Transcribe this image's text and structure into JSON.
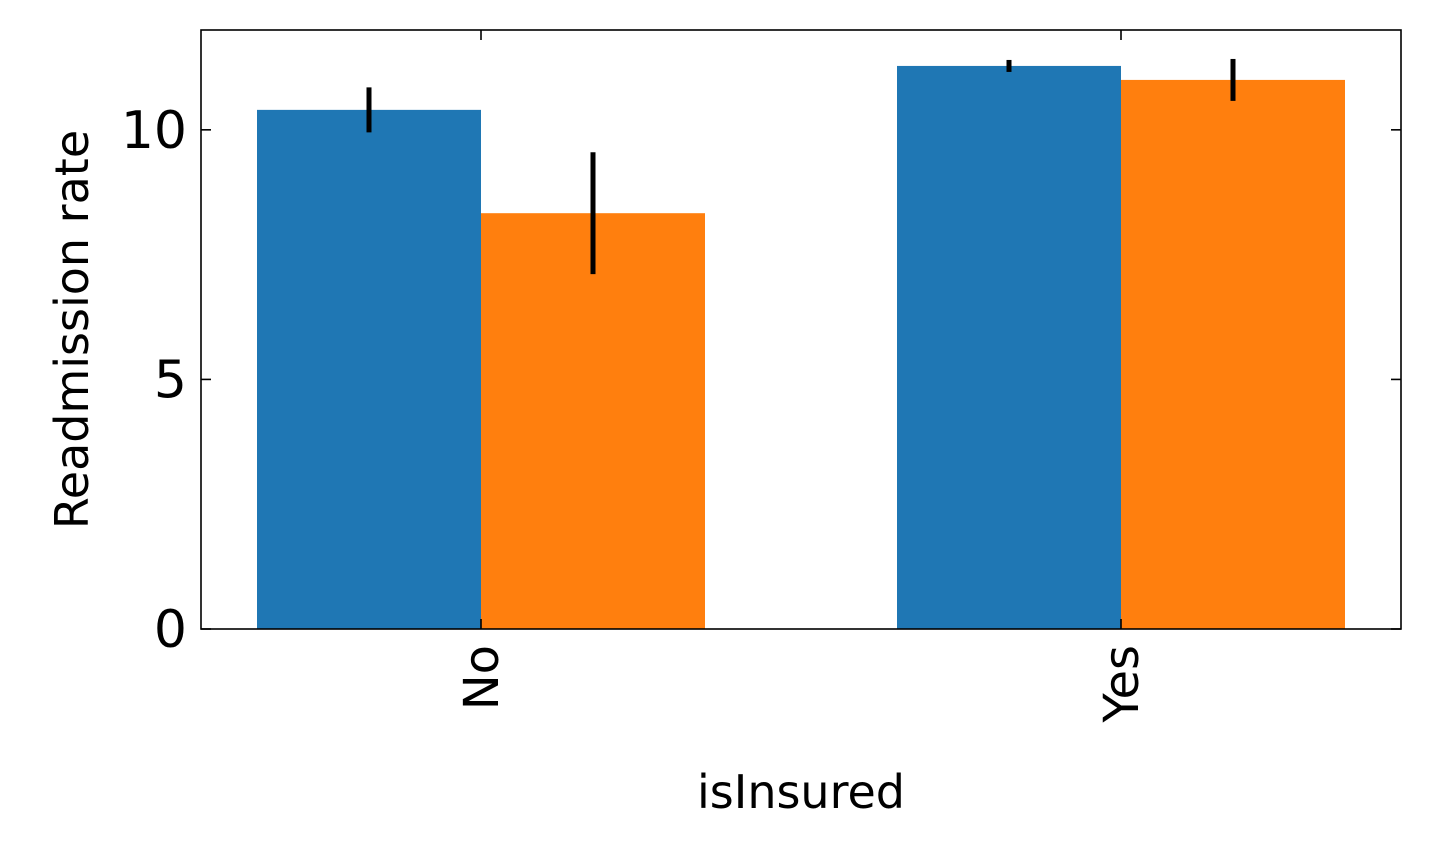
{
  "chart_data": {
    "type": "bar",
    "categories": [
      "No",
      "Yes"
    ],
    "series": [
      {
        "values": [
          10.4,
          11.28
        ],
        "errors": [
          0.45,
          0.12
        ],
        "color": "#1f77b4"
      },
      {
        "values": [
          8.33,
          11.0
        ],
        "errors": [
          1.22,
          0.42
        ],
        "color": "#ff7f0e"
      }
    ],
    "xlabel": "isInsured",
    "ylabel": "Readmission rate",
    "ylim": [
      0,
      12
    ],
    "yticks": [
      0,
      5,
      10
    ],
    "grid": false,
    "legend": "none"
  }
}
